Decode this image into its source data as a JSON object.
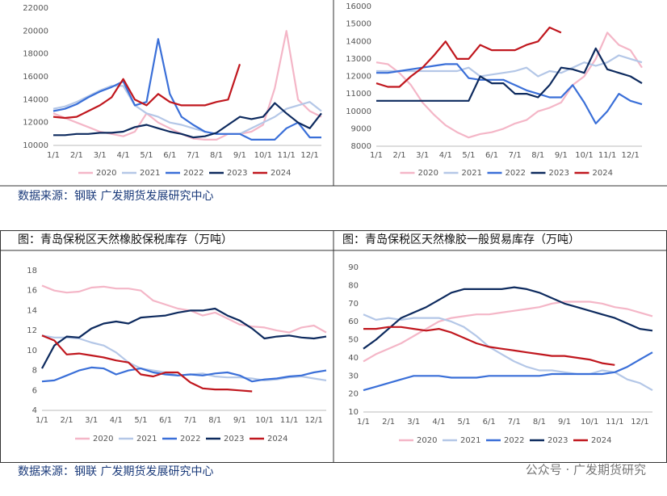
{
  "captions": [
    "数据来源：钢联  广发期货发展研究中心",
    "数据来源：钢联  广发期货发展研究中心"
  ],
  "watermark": "公众号 · 广发期货研究",
  "chart_data": [
    {
      "type": "line",
      "categories": [
        "1/1",
        null,
        "2/1",
        null,
        "3/1",
        null,
        "4/1",
        null,
        "5/1",
        null,
        "6/1",
        null,
        "7/1",
        null,
        "8/1",
        null,
        "9/1",
        null,
        "10/1",
        null,
        "11/1",
        null,
        "12/1",
        null
      ],
      "ylim": [
        10000,
        22000
      ],
      "yticks": [
        10000,
        12000,
        14000,
        16000,
        18000,
        20000,
        22000
      ],
      "legend": "bottom",
      "series": [
        {
          "name": "2020",
          "color": "#f4b6c7",
          "values": [
            12800,
            12400,
            12000,
            11600,
            11200,
            11000,
            10800,
            11200,
            12800,
            12000,
            11500,
            11000,
            10600,
            10500,
            10500,
            11000,
            11000,
            11200,
            11800,
            15000,
            20000,
            14000,
            13000,
            12500
          ]
        },
        {
          "name": "2021",
          "color": "#b4c7e7",
          "values": [
            13200,
            13400,
            13800,
            14300,
            14800,
            15200,
            15200,
            13500,
            12800,
            12500,
            12000,
            11800,
            11500,
            11200,
            11000,
            11000,
            11000,
            11500,
            12000,
            12500,
            13200,
            13500,
            13800,
            13000
          ]
        },
        {
          "name": "2022",
          "color": "#3a6fd8",
          "values": [
            13000,
            13200,
            13600,
            14200,
            14700,
            15100,
            15600,
            13500,
            13800,
            19300,
            14500,
            12500,
            11800,
            11200,
            11000,
            11000,
            11000,
            10500,
            10500,
            10500,
            11500,
            12000,
            10700,
            10700
          ]
        },
        {
          "name": "2023",
          "color": "#0d2a5e",
          "values": [
            10900,
            10900,
            11000,
            11000,
            11100,
            11100,
            11200,
            11600,
            11800,
            11500,
            11200,
            11000,
            10700,
            10800,
            11100,
            11800,
            12500,
            12300,
            12500,
            13700,
            12800,
            12000,
            11500,
            12800
          ]
        },
        {
          "name": "2024",
          "color": "#c0171e",
          "values": [
            12500,
            12400,
            12500,
            13000,
            13500,
            14200,
            15800,
            14000,
            13500,
            14500,
            13800,
            13500,
            13500,
            13500,
            13800,
            14000,
            17100,
            null,
            null,
            null,
            null,
            null,
            null,
            null
          ]
        }
      ]
    },
    {
      "type": "line",
      "categories": [
        "1/1",
        null,
        "2/1",
        null,
        "3/1",
        null,
        "4/1",
        null,
        "5/1",
        null,
        "6/1",
        null,
        "7/1",
        null,
        "8/1",
        null,
        "9/1",
        null,
        "10/1",
        null,
        "11/1",
        null,
        "12/1",
        null
      ],
      "ylim": [
        8000,
        16000
      ],
      "yticks": [
        8000,
        9000,
        10000,
        11000,
        12000,
        13000,
        14000,
        15000,
        16000
      ],
      "legend": "bottom",
      "series": [
        {
          "name": "2020",
          "color": "#f4b6c7",
          "values": [
            12800,
            12700,
            12200,
            11500,
            10500,
            9800,
            9200,
            8800,
            8500,
            8700,
            8800,
            9000,
            9300,
            9500,
            10000,
            10200,
            10500,
            11500,
            12000,
            13000,
            14500,
            13800,
            13500,
            12500
          ]
        },
        {
          "name": "2021",
          "color": "#b4c7e7",
          "values": [
            12300,
            12300,
            12300,
            12300,
            12300,
            12300,
            12300,
            12300,
            12500,
            12000,
            12100,
            12200,
            12300,
            12500,
            12000,
            12300,
            12200,
            12500,
            12800,
            12600,
            12800,
            13200,
            13000,
            12800
          ]
        },
        {
          "name": "2022",
          "color": "#3a6fd8",
          "values": [
            12200,
            12200,
            12300,
            12400,
            12500,
            12600,
            12700,
            12700,
            11900,
            11800,
            11800,
            11800,
            11500,
            11200,
            11000,
            10800,
            10800,
            11500,
            10500,
            9300,
            10000,
            11000,
            10600,
            10400
          ]
        },
        {
          "name": "2023",
          "color": "#0d2a5e",
          "values": [
            10600,
            10600,
            10600,
            10600,
            10600,
            10600,
            10600,
            10600,
            10600,
            12000,
            11600,
            11600,
            11000,
            11000,
            10800,
            11500,
            12500,
            12400,
            12200,
            13600,
            12400,
            12200,
            12000,
            11600
          ]
        },
        {
          "name": "2024",
          "color": "#c0171e",
          "values": [
            11600,
            11400,
            11400,
            12000,
            12500,
            13200,
            14000,
            13000,
            13000,
            13800,
            13500,
            13500,
            13500,
            13800,
            14000,
            14800,
            14500,
            null,
            null,
            null,
            null,
            null,
            null,
            null
          ]
        }
      ]
    },
    {
      "type": "line",
      "title": "图：青岛保税区天然橡胶保税库存（万吨）",
      "categories": [
        "1/1",
        null,
        "2/1",
        null,
        "3/1",
        null,
        "4/1",
        null,
        "5/1",
        null,
        "6/1",
        null,
        "7/1",
        null,
        "8/1",
        null,
        "9/1",
        null,
        "10/1",
        null,
        "11/1",
        null,
        "12/1",
        null
      ],
      "ylim": [
        4,
        18
      ],
      "yticks": [
        4,
        6,
        8,
        10,
        12,
        14,
        16,
        18
      ],
      "legend": "bottom",
      "series": [
        {
          "name": "2020",
          "color": "#f4b6c7",
          "values": [
            16.5,
            16.0,
            15.8,
            15.9,
            16.3,
            16.4,
            16.2,
            16.2,
            16.0,
            15.0,
            14.6,
            14.2,
            14.0,
            13.5,
            13.8,
            13.2,
            12.6,
            12.4,
            12.3,
            12.0,
            11.8,
            12.3,
            12.5,
            11.8
          ]
        },
        {
          "name": "2021",
          "color": "#b4c7e7",
          "values": [
            11.5,
            11.3,
            11.3,
            11.2,
            10.8,
            10.5,
            9.8,
            8.8,
            8.2,
            8.0,
            7.8,
            7.5,
            7.6,
            7.7,
            7.4,
            7.3,
            7.3,
            7.2,
            7.0,
            7.1,
            7.3,
            7.4,
            7.2,
            7.0
          ]
        },
        {
          "name": "2022",
          "color": "#3a6fd8",
          "values": [
            6.9,
            7.0,
            7.5,
            8.0,
            8.3,
            8.2,
            7.6,
            8.0,
            8.2,
            7.8,
            7.6,
            7.5,
            7.6,
            7.5,
            7.7,
            7.8,
            7.5,
            6.9,
            7.1,
            7.2,
            7.4,
            7.5,
            7.8,
            8.0
          ]
        },
        {
          "name": "2023",
          "color": "#0d2a5e",
          "values": [
            8.2,
            10.5,
            11.4,
            11.3,
            12.2,
            12.7,
            12.9,
            12.7,
            13.3,
            13.4,
            13.5,
            13.8,
            14.0,
            14.0,
            14.2,
            13.5,
            13.0,
            12.2,
            11.2,
            11.4,
            11.5,
            11.3,
            11.2,
            11.4
          ]
        },
        {
          "name": "2024",
          "color": "#c0171e",
          "values": [
            11.5,
            11.0,
            9.6,
            9.7,
            9.5,
            9.3,
            9.0,
            8.8,
            7.6,
            7.4,
            7.8,
            7.8,
            6.8,
            6.2,
            6.1,
            6.1,
            6.0,
            5.9,
            null,
            null,
            null,
            null,
            null,
            null
          ]
        }
      ]
    },
    {
      "type": "line",
      "title": "图：青岛保税区天然橡胶一般贸易库存（万吨）",
      "categories": [
        "1/1",
        null,
        "2/1",
        null,
        "3/1",
        null,
        "4/1",
        null,
        "5/1",
        null,
        "6/1",
        null,
        "7/1",
        null,
        "8/1",
        null,
        "9/1",
        null,
        "10/1",
        null,
        "11/1",
        null,
        "12/1",
        null
      ],
      "ylim": [
        10,
        90
      ],
      "yticks": [
        10,
        20,
        30,
        40,
        50,
        60,
        70,
        80,
        90
      ],
      "legend": "bottom",
      "series": [
        {
          "name": "2020",
          "color": "#f4b6c7",
          "values": [
            38,
            42,
            45,
            48,
            52,
            56,
            60,
            62,
            63,
            64,
            64,
            65,
            66,
            67,
            68,
            70,
            71,
            71,
            71,
            70,
            68,
            67,
            65,
            63
          ]
        },
        {
          "name": "2021",
          "color": "#b4c7e7",
          "values": [
            64,
            61,
            62,
            61,
            62,
            62,
            62,
            60,
            57,
            52,
            46,
            42,
            38,
            35,
            33,
            33,
            32,
            31,
            31,
            33,
            32,
            28,
            26,
            22
          ]
        },
        {
          "name": "2022",
          "color": "#3a6fd8",
          "values": [
            22,
            24,
            26,
            28,
            30,
            30,
            30,
            29,
            29,
            29,
            30,
            30,
            30,
            30,
            30,
            31,
            31,
            31,
            31,
            31,
            32,
            35,
            39,
            43
          ]
        },
        {
          "name": "2023",
          "color": "#0d2a5e",
          "values": [
            45,
            50,
            56,
            62,
            65,
            68,
            72,
            76,
            78,
            78,
            78,
            78,
            79,
            78,
            76,
            73,
            70,
            68,
            66,
            64,
            62,
            59,
            56,
            55
          ]
        },
        {
          "name": "2024",
          "color": "#c0171e",
          "values": [
            56,
            56,
            57,
            57,
            56,
            55,
            56,
            54,
            51,
            48,
            46,
            45,
            44,
            43,
            42,
            41,
            41,
            40,
            39,
            37,
            36,
            null,
            null,
            null
          ]
        }
      ]
    }
  ]
}
